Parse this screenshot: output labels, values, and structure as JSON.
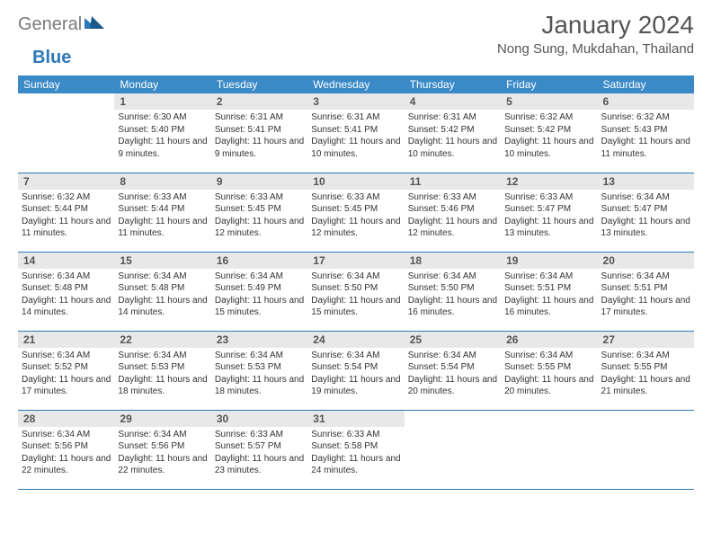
{
  "brand": {
    "name1": "General",
    "name2": "Blue"
  },
  "title": "January 2024",
  "location": "Nong Sung, Mukdahan, Thailand",
  "colors": {
    "header_bg": "#3a8ac7",
    "accent": "#2d78b8",
    "daynum_bg": "#e8e8e8",
    "text": "#333333",
    "title_text": "#555555"
  },
  "dayNames": [
    "Sunday",
    "Monday",
    "Tuesday",
    "Wednesday",
    "Thursday",
    "Friday",
    "Saturday"
  ],
  "startOffset": 1,
  "days": [
    {
      "n": 1,
      "sr": "6:30 AM",
      "ss": "5:40 PM",
      "dh": 11,
      "dm": 9
    },
    {
      "n": 2,
      "sr": "6:31 AM",
      "ss": "5:41 PM",
      "dh": 11,
      "dm": 9
    },
    {
      "n": 3,
      "sr": "6:31 AM",
      "ss": "5:41 PM",
      "dh": 11,
      "dm": 10
    },
    {
      "n": 4,
      "sr": "6:31 AM",
      "ss": "5:42 PM",
      "dh": 11,
      "dm": 10
    },
    {
      "n": 5,
      "sr": "6:32 AM",
      "ss": "5:42 PM",
      "dh": 11,
      "dm": 10
    },
    {
      "n": 6,
      "sr": "6:32 AM",
      "ss": "5:43 PM",
      "dh": 11,
      "dm": 11
    },
    {
      "n": 7,
      "sr": "6:32 AM",
      "ss": "5:44 PM",
      "dh": 11,
      "dm": 11
    },
    {
      "n": 8,
      "sr": "6:33 AM",
      "ss": "5:44 PM",
      "dh": 11,
      "dm": 11
    },
    {
      "n": 9,
      "sr": "6:33 AM",
      "ss": "5:45 PM",
      "dh": 11,
      "dm": 12
    },
    {
      "n": 10,
      "sr": "6:33 AM",
      "ss": "5:45 PM",
      "dh": 11,
      "dm": 12
    },
    {
      "n": 11,
      "sr": "6:33 AM",
      "ss": "5:46 PM",
      "dh": 11,
      "dm": 12
    },
    {
      "n": 12,
      "sr": "6:33 AM",
      "ss": "5:47 PM",
      "dh": 11,
      "dm": 13
    },
    {
      "n": 13,
      "sr": "6:34 AM",
      "ss": "5:47 PM",
      "dh": 11,
      "dm": 13
    },
    {
      "n": 14,
      "sr": "6:34 AM",
      "ss": "5:48 PM",
      "dh": 11,
      "dm": 14
    },
    {
      "n": 15,
      "sr": "6:34 AM",
      "ss": "5:48 PM",
      "dh": 11,
      "dm": 14
    },
    {
      "n": 16,
      "sr": "6:34 AM",
      "ss": "5:49 PM",
      "dh": 11,
      "dm": 15
    },
    {
      "n": 17,
      "sr": "6:34 AM",
      "ss": "5:50 PM",
      "dh": 11,
      "dm": 15
    },
    {
      "n": 18,
      "sr": "6:34 AM",
      "ss": "5:50 PM",
      "dh": 11,
      "dm": 16
    },
    {
      "n": 19,
      "sr": "6:34 AM",
      "ss": "5:51 PM",
      "dh": 11,
      "dm": 16
    },
    {
      "n": 20,
      "sr": "6:34 AM",
      "ss": "5:51 PM",
      "dh": 11,
      "dm": 17
    },
    {
      "n": 21,
      "sr": "6:34 AM",
      "ss": "5:52 PM",
      "dh": 11,
      "dm": 17
    },
    {
      "n": 22,
      "sr": "6:34 AM",
      "ss": "5:53 PM",
      "dh": 11,
      "dm": 18
    },
    {
      "n": 23,
      "sr": "6:34 AM",
      "ss": "5:53 PM",
      "dh": 11,
      "dm": 18
    },
    {
      "n": 24,
      "sr": "6:34 AM",
      "ss": "5:54 PM",
      "dh": 11,
      "dm": 19
    },
    {
      "n": 25,
      "sr": "6:34 AM",
      "ss": "5:54 PM",
      "dh": 11,
      "dm": 20
    },
    {
      "n": 26,
      "sr": "6:34 AM",
      "ss": "5:55 PM",
      "dh": 11,
      "dm": 20
    },
    {
      "n": 27,
      "sr": "6:34 AM",
      "ss": "5:55 PM",
      "dh": 11,
      "dm": 21
    },
    {
      "n": 28,
      "sr": "6:34 AM",
      "ss": "5:56 PM",
      "dh": 11,
      "dm": 22
    },
    {
      "n": 29,
      "sr": "6:34 AM",
      "ss": "5:56 PM",
      "dh": 11,
      "dm": 22
    },
    {
      "n": 30,
      "sr": "6:33 AM",
      "ss": "5:57 PM",
      "dh": 11,
      "dm": 23
    },
    {
      "n": 31,
      "sr": "6:33 AM",
      "ss": "5:58 PM",
      "dh": 11,
      "dm": 24
    }
  ],
  "labels": {
    "sunrise": "Sunrise:",
    "sunset": "Sunset:",
    "daylight": "Daylight:",
    "hours": "hours",
    "and": "and",
    "minutes": "minutes."
  }
}
